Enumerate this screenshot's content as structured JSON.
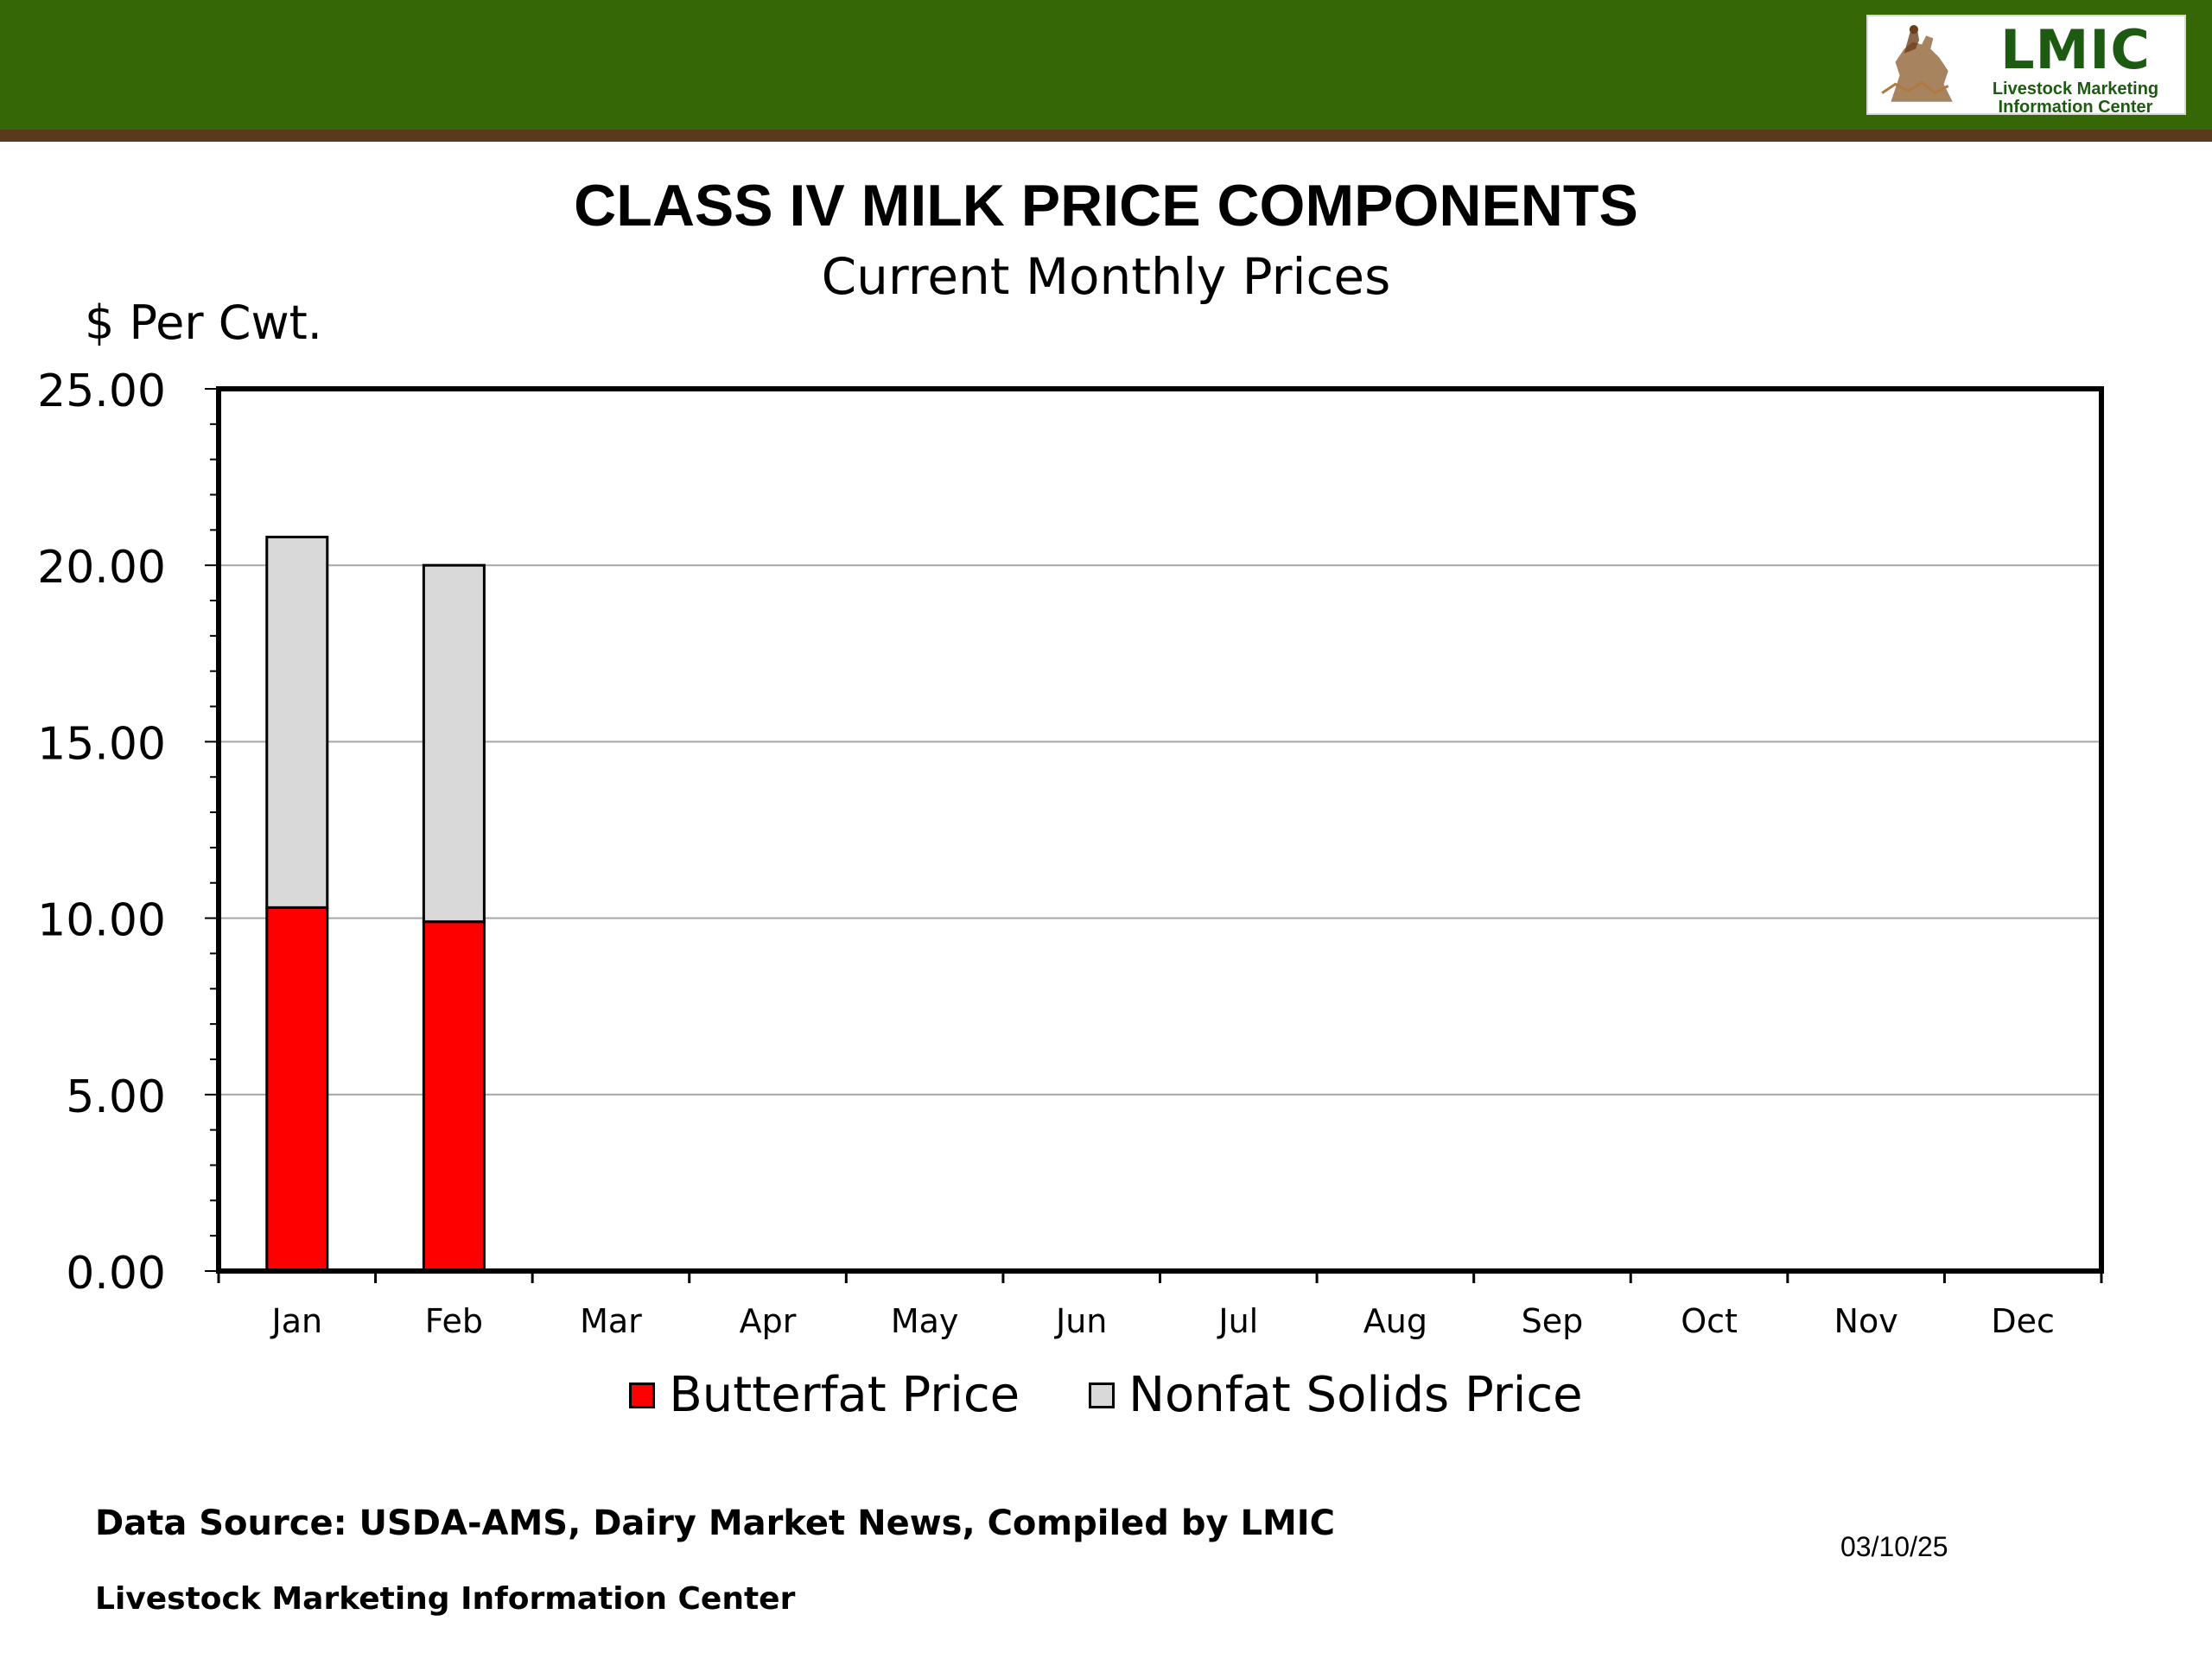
{
  "header": {
    "band_color": "#356707",
    "rule_color": "#5a3a1c",
    "logo": {
      "title": "LMIC",
      "subtitle_line1": "Livestock Marketing",
      "subtitle_line2": "Information Center",
      "icon": "horse-rider-emblem-icon"
    }
  },
  "chart_data": {
    "type": "bar",
    "stacked": true,
    "title": "CLASS IV MILK PRICE COMPONENTS",
    "subtitle": "Current Monthly Prices",
    "ylabel": "$ Per Cwt.",
    "xlabel": "",
    "ylim": [
      0,
      25
    ],
    "yticks": [
      "0.00",
      "5.00",
      "10.00",
      "15.00",
      "20.00",
      "25.00"
    ],
    "ytick_values": [
      0,
      5,
      10,
      15,
      20,
      25
    ],
    "grid": true,
    "legend_position": "bottom",
    "categories": [
      "Jan",
      "Feb",
      "Mar",
      "Apr",
      "May",
      "Jun",
      "Jul",
      "Aug",
      "Sep",
      "Oct",
      "Nov",
      "Dec"
    ],
    "series": [
      {
        "name": "Butterfat Price",
        "color": "#ff0000",
        "values": [
          10.3,
          9.9,
          null,
          null,
          null,
          null,
          null,
          null,
          null,
          null,
          null,
          null
        ]
      },
      {
        "name": "Nonfat Solids Price",
        "color": "#d9d9d9",
        "values": [
          10.5,
          10.1,
          null,
          null,
          null,
          null,
          null,
          null,
          null,
          null,
          null,
          null
        ]
      }
    ]
  },
  "footer": {
    "source": "Data Source:  USDA-AMS, Dairy Market News, Compiled by LMIC",
    "date": "03/10/25",
    "org": "Livestock Marketing Information Center"
  }
}
